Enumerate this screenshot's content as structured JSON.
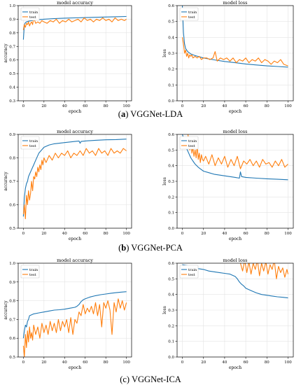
{
  "colors": {
    "train": "#1f77b4",
    "test": "#ff7f0e"
  },
  "rows": [
    {
      "caption_label": "a",
      "caption_text": "VGGNet-LDA"
    },
    {
      "caption_label": "b",
      "caption_text": "VGGNet-PCA"
    },
    {
      "caption_label": "c",
      "caption_text": "VGGNet-ICA"
    }
  ],
  "chart_data": [
    {
      "type": "line",
      "title": "model accuracy",
      "xlabel": "epoch",
      "ylabel": "accuracy",
      "xlim": [
        -5,
        105
      ],
      "ylim": [
        0.3,
        1.0
      ],
      "xticks": [
        0,
        20,
        40,
        60,
        80,
        100
      ],
      "yticks": [
        0.3,
        0.4,
        0.5,
        0.6,
        0.7,
        0.8,
        0.9,
        1.0
      ],
      "grid": true,
      "legend": "top-left",
      "series": [
        {
          "name": "train",
          "x": [
            0,
            1,
            2,
            3,
            5,
            8,
            12,
            20,
            30,
            40,
            50,
            60,
            70,
            80,
            90,
            100
          ],
          "y": [
            0.75,
            0.86,
            0.875,
            0.88,
            0.885,
            0.89,
            0.895,
            0.9,
            0.905,
            0.908,
            0.91,
            0.912,
            0.914,
            0.916,
            0.918,
            0.92
          ]
        },
        {
          "name": "test",
          "x": [
            0,
            1,
            2,
            3,
            4,
            5,
            6,
            7,
            8,
            9,
            10,
            12,
            14,
            16,
            18,
            20,
            23,
            26,
            29,
            32,
            35,
            38,
            41,
            44,
            47,
            50,
            53,
            56,
            59,
            62,
            65,
            68,
            71,
            74,
            77,
            80,
            83,
            86,
            89,
            92,
            95,
            98,
            100
          ],
          "y": [
            0.82,
            0.86,
            0.84,
            0.87,
            0.86,
            0.88,
            0.85,
            0.87,
            0.88,
            0.86,
            0.91,
            0.87,
            0.88,
            0.87,
            0.89,
            0.88,
            0.87,
            0.89,
            0.88,
            0.9,
            0.87,
            0.89,
            0.88,
            0.9,
            0.88,
            0.89,
            0.9,
            0.88,
            0.91,
            0.89,
            0.9,
            0.88,
            0.9,
            0.89,
            0.91,
            0.89,
            0.9,
            0.88,
            0.91,
            0.89,
            0.9,
            0.89,
            0.9
          ]
        }
      ]
    },
    {
      "type": "line",
      "title": "model loss",
      "xlabel": "epoch",
      "ylabel": "loss",
      "xlim": [
        -5,
        105
      ],
      "ylim": [
        0.0,
        0.6
      ],
      "xticks": [
        0,
        20,
        40,
        60,
        80,
        100
      ],
      "yticks": [
        0.0,
        0.1,
        0.2,
        0.3,
        0.4,
        0.5,
        0.6
      ],
      "grid": true,
      "legend": "top-left",
      "series": [
        {
          "name": "train",
          "x": [
            0,
            1,
            2,
            3,
            5,
            8,
            12,
            20,
            30,
            40,
            50,
            60,
            70,
            80,
            90,
            100
          ],
          "y": [
            0.6,
            0.43,
            0.36,
            0.33,
            0.31,
            0.295,
            0.285,
            0.27,
            0.258,
            0.248,
            0.24,
            0.232,
            0.226,
            0.22,
            0.216,
            0.212
          ]
        },
        {
          "name": "test",
          "x": [
            0,
            1,
            2,
            3,
            4,
            5,
            6,
            7,
            8,
            9,
            10,
            12,
            14,
            16,
            18,
            20,
            23,
            26,
            29,
            31,
            33,
            36,
            39,
            42,
            45,
            48,
            51,
            54,
            57,
            60,
            63,
            66,
            69,
            72,
            75,
            78,
            81,
            84,
            87,
            90,
            93,
            96,
            100
          ],
          "y": [
            0.4,
            0.36,
            0.3,
            0.32,
            0.28,
            0.3,
            0.27,
            0.29,
            0.28,
            0.29,
            0.27,
            0.28,
            0.27,
            0.28,
            0.26,
            0.27,
            0.27,
            0.26,
            0.27,
            0.31,
            0.25,
            0.27,
            0.26,
            0.27,
            0.25,
            0.27,
            0.24,
            0.26,
            0.25,
            0.27,
            0.24,
            0.26,
            0.25,
            0.27,
            0.24,
            0.26,
            0.25,
            0.23,
            0.25,
            0.24,
            0.26,
            0.23,
            0.22
          ]
        }
      ]
    },
    {
      "type": "line",
      "title": "model accuracy",
      "xlabel": "epoch",
      "ylabel": "accuracy",
      "xlim": [
        -5,
        105
      ],
      "ylim": [
        0.5,
        0.9
      ],
      "xticks": [
        0,
        20,
        40,
        60,
        80,
        100
      ],
      "yticks": [
        0.5,
        0.6,
        0.7,
        0.8,
        0.9
      ],
      "grid": true,
      "legend": "top-left",
      "series": [
        {
          "name": "train",
          "x": [
            0,
            1,
            2,
            3,
            4,
            5,
            6,
            8,
            10,
            12,
            15,
            18,
            20,
            25,
            30,
            40,
            50,
            54,
            55,
            56,
            60,
            70,
            80,
            90,
            100
          ],
          "y": [
            0.55,
            0.63,
            0.67,
            0.69,
            0.7,
            0.72,
            0.73,
            0.75,
            0.77,
            0.79,
            0.82,
            0.835,
            0.845,
            0.855,
            0.86,
            0.865,
            0.87,
            0.872,
            0.862,
            0.87,
            0.872,
            0.875,
            0.877,
            0.878,
            0.88
          ]
        },
        {
          "name": "test",
          "x": [
            0,
            1,
            2,
            3,
            4,
            5,
            6,
            7,
            8,
            9,
            10,
            11,
            12,
            13,
            14,
            15,
            16,
            17,
            18,
            19,
            20,
            22,
            25,
            28,
            31,
            34,
            37,
            40,
            43,
            46,
            49,
            52,
            55,
            58,
            61,
            64,
            67,
            70,
            73,
            76,
            79,
            82,
            85,
            88,
            91,
            94,
            97,
            100
          ],
          "y": [
            0.56,
            0.6,
            0.54,
            0.64,
            0.6,
            0.66,
            0.62,
            0.65,
            0.7,
            0.66,
            0.72,
            0.71,
            0.74,
            0.72,
            0.76,
            0.74,
            0.77,
            0.75,
            0.79,
            0.77,
            0.8,
            0.78,
            0.81,
            0.79,
            0.82,
            0.8,
            0.82,
            0.81,
            0.83,
            0.8,
            0.82,
            0.81,
            0.83,
            0.81,
            0.84,
            0.82,
            0.83,
            0.81,
            0.84,
            0.82,
            0.83,
            0.81,
            0.84,
            0.82,
            0.83,
            0.82,
            0.84,
            0.83
          ]
        }
      ]
    },
    {
      "type": "line",
      "title": "model loss",
      "xlabel": "epoch",
      "ylabel": "loss",
      "xlim": [
        -5,
        105
      ],
      "ylim": [
        0.0,
        0.6
      ],
      "xticks": [
        0,
        20,
        40,
        60,
        80,
        100
      ],
      "yticks": [
        0.0,
        0.1,
        0.2,
        0.3,
        0.4,
        0.5,
        0.6
      ],
      "grid": true,
      "legend": "top-left",
      "series": [
        {
          "name": "train",
          "x": [
            0,
            2,
            4,
            6,
            8,
            10,
            12,
            15,
            18,
            20,
            25,
            30,
            40,
            50,
            54,
            55,
            56,
            60,
            70,
            80,
            90,
            100
          ],
          "y": [
            0.6,
            0.56,
            0.51,
            0.48,
            0.45,
            0.43,
            0.41,
            0.39,
            0.375,
            0.365,
            0.355,
            0.345,
            0.335,
            0.325,
            0.32,
            0.36,
            0.33,
            0.325,
            0.32,
            0.316,
            0.313,
            0.31
          ]
        },
        {
          "name": "test",
          "x": [
            5,
            6,
            7,
            8,
            9,
            10,
            11,
            12,
            13,
            14,
            15,
            16,
            17,
            18,
            19,
            20,
            22,
            25,
            28,
            31,
            34,
            37,
            40,
            43,
            46,
            49,
            52,
            55,
            58,
            61,
            64,
            67,
            70,
            73,
            76,
            79,
            82,
            85,
            88,
            91,
            94,
            97,
            100
          ],
          "y": [
            0.62,
            0.55,
            0.5,
            0.58,
            0.48,
            0.52,
            0.46,
            0.5,
            0.45,
            0.53,
            0.44,
            0.48,
            0.42,
            0.47,
            0.44,
            0.43,
            0.46,
            0.41,
            0.47,
            0.4,
            0.45,
            0.41,
            0.46,
            0.39,
            0.44,
            0.4,
            0.46,
            0.38,
            0.43,
            0.41,
            0.44,
            0.4,
            0.43,
            0.39,
            0.44,
            0.41,
            0.42,
            0.39,
            0.43,
            0.4,
            0.44,
            0.39,
            0.41
          ]
        }
      ]
    },
    {
      "type": "line",
      "title": "model accuracy",
      "xlabel": "epoch",
      "ylabel": "accuracy",
      "xlim": [
        -5,
        105
      ],
      "ylim": [
        0.5,
        1.0
      ],
      "xticks": [
        0,
        20,
        40,
        60,
        80,
        100
      ],
      "yticks": [
        0.5,
        0.6,
        0.7,
        0.8,
        0.9,
        1.0
      ],
      "grid": true,
      "legend": "top-left",
      "series": [
        {
          "name": "train",
          "x": [
            0,
            1,
            2,
            3,
            4,
            5,
            6,
            8,
            10,
            15,
            20,
            25,
            30,
            35,
            40,
            45,
            50,
            52,
            54,
            56,
            58,
            60,
            65,
            70,
            75,
            80,
            85,
            90,
            95,
            100
          ],
          "y": [
            0.6,
            0.64,
            0.67,
            0.66,
            0.69,
            0.7,
            0.72,
            0.725,
            0.73,
            0.735,
            0.74,
            0.745,
            0.75,
            0.752,
            0.755,
            0.76,
            0.765,
            0.77,
            0.78,
            0.795,
            0.805,
            0.81,
            0.82,
            0.827,
            0.832,
            0.836,
            0.84,
            0.843,
            0.846,
            0.848
          ]
        },
        {
          "name": "test",
          "x": [
            0,
            1,
            2,
            3,
            4,
            5,
            6,
            7,
            8,
            9,
            10,
            12,
            14,
            16,
            18,
            20,
            22,
            24,
            26,
            28,
            30,
            32,
            34,
            36,
            38,
            40,
            42,
            44,
            46,
            48,
            50,
            52,
            54,
            56,
            58,
            60,
            62,
            64,
            66,
            68,
            70,
            72,
            74,
            76,
            78,
            80,
            82,
            84,
            86,
            88,
            90,
            92,
            94,
            96,
            98,
            100
          ],
          "y": [
            0.56,
            0.5,
            0.62,
            0.55,
            0.64,
            0.58,
            0.66,
            0.6,
            0.63,
            0.59,
            0.67,
            0.62,
            0.66,
            0.6,
            0.68,
            0.63,
            0.67,
            0.62,
            0.69,
            0.64,
            0.68,
            0.63,
            0.7,
            0.64,
            0.69,
            0.66,
            0.7,
            0.63,
            0.71,
            0.62,
            0.7,
            0.68,
            0.74,
            0.72,
            0.78,
            0.73,
            0.76,
            0.74,
            0.77,
            0.73,
            0.79,
            0.72,
            0.78,
            0.66,
            0.79,
            0.76,
            0.8,
            0.75,
            0.62,
            0.79,
            0.74,
            0.81,
            0.76,
            0.8,
            0.75,
            0.79
          ]
        }
      ]
    },
    {
      "type": "line",
      "title": "model loss",
      "xlabel": "epoch",
      "ylabel": "loss",
      "xlim": [
        -5,
        105
      ],
      "ylim": [
        0.0,
        0.6
      ],
      "xticks": [
        0,
        20,
        40,
        60,
        80,
        100
      ],
      "yticks": [
        0.0,
        0.1,
        0.2,
        0.3,
        0.4,
        0.5,
        0.6
      ],
      "grid": true,
      "legend": "top-left",
      "series": [
        {
          "name": "train",
          "x": [
            0,
            5,
            10,
            15,
            20,
            25,
            30,
            35,
            40,
            45,
            50,
            52,
            54,
            56,
            58,
            60,
            65,
            70,
            75,
            80,
            85,
            90,
            95,
            100
          ],
          "y": [
            0.59,
            0.585,
            0.575,
            0.565,
            0.56,
            0.55,
            0.545,
            0.54,
            0.535,
            0.53,
            0.515,
            0.5,
            0.48,
            0.465,
            0.455,
            0.44,
            0.425,
            0.41,
            0.4,
            0.395,
            0.39,
            0.385,
            0.382,
            0.378
          ]
        },
        {
          "name": "test",
          "x": [
            55,
            57,
            59,
            61,
            63,
            65,
            67,
            69,
            71,
            73,
            75,
            77,
            79,
            81,
            83,
            85,
            87,
            89,
            91,
            93,
            95,
            97,
            99,
            100
          ],
          "y": [
            0.6,
            0.55,
            0.62,
            0.54,
            0.61,
            0.53,
            0.6,
            0.56,
            0.62,
            0.52,
            0.6,
            0.55,
            0.61,
            0.53,
            0.59,
            0.56,
            0.62,
            0.5,
            0.58,
            0.54,
            0.57,
            0.51,
            0.56,
            0.53
          ]
        }
      ]
    }
  ]
}
